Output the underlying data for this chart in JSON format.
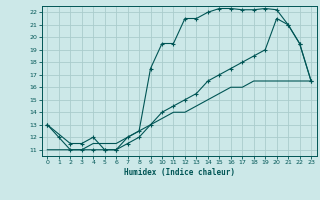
{
  "xlabel": "Humidex (Indice chaleur)",
  "bg_color": "#cce8e8",
  "grid_color": "#aacccc",
  "line_color": "#005555",
  "xlim": [
    -0.5,
    23.5
  ],
  "ylim": [
    10.5,
    22.5
  ],
  "yticks": [
    11,
    12,
    13,
    14,
    15,
    16,
    17,
    18,
    19,
    20,
    21,
    22
  ],
  "xticks": [
    0,
    1,
    2,
    3,
    4,
    5,
    6,
    7,
    8,
    9,
    10,
    11,
    12,
    13,
    14,
    15,
    16,
    17,
    18,
    19,
    20,
    21,
    22,
    23
  ],
  "line1_x": [
    0,
    1,
    2,
    3,
    4,
    5,
    6,
    7,
    8,
    9,
    10,
    11,
    12,
    13,
    14,
    15,
    16,
    17,
    18,
    19,
    20,
    21,
    22,
    23
  ],
  "line1_y": [
    13,
    12,
    11,
    11,
    11,
    11,
    11,
    12,
    12.5,
    17.5,
    19.5,
    19.5,
    21.5,
    21.5,
    22,
    22.3,
    22.3,
    22.2,
    22.2,
    22.3,
    22.2,
    21,
    19.5,
    16.5
  ],
  "line2_x": [
    0,
    2,
    3,
    4,
    5,
    6,
    7,
    8,
    9,
    10,
    11,
    12,
    13,
    14,
    15,
    16,
    17,
    18,
    19,
    20,
    21,
    22,
    23
  ],
  "line2_y": [
    13,
    11.5,
    11.5,
    12,
    11,
    11,
    11.5,
    12,
    13,
    14,
    14.5,
    15,
    15.5,
    16.5,
    17,
    17.5,
    18,
    18.5,
    19,
    21.5,
    21,
    19.5,
    16.5
  ],
  "line3_x": [
    0,
    1,
    2,
    3,
    4,
    5,
    6,
    7,
    8,
    9,
    10,
    11,
    12,
    13,
    14,
    15,
    16,
    17,
    18,
    19,
    20,
    21,
    22,
    23
  ],
  "line3_y": [
    11,
    11,
    11,
    11,
    11.5,
    11.5,
    11.5,
    12,
    12.5,
    13,
    13.5,
    14,
    14,
    14.5,
    15,
    15.5,
    16,
    16,
    16.5,
    16.5,
    16.5,
    16.5,
    16.5,
    16.5
  ]
}
